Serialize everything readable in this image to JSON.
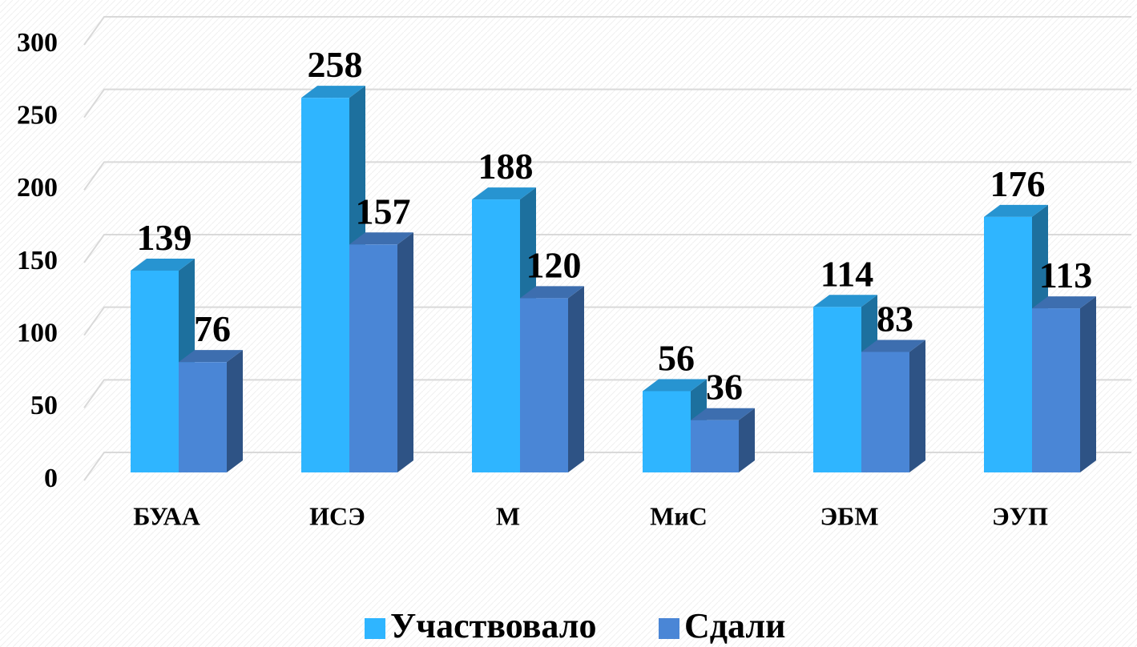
{
  "chart_data": {
    "type": "bar3d",
    "categories": [
      "БУАА",
      "ИСЭ",
      "М",
      "МиС",
      "ЭБМ",
      "ЭУП"
    ],
    "series": [
      {
        "name": "Участвовало",
        "color": "#2fb5ff",
        "values": [
          139,
          258,
          188,
          56,
          114,
          176
        ]
      },
      {
        "name": "Сдали",
        "color": "#4a86d6",
        "values": [
          76,
          157,
          120,
          36,
          83,
          113
        ]
      }
    ],
    "ylim": [
      0,
      300
    ],
    "yticks": [
      0,
      50,
      100,
      150,
      200,
      250,
      300
    ],
    "grid": true,
    "legend": "bottom"
  }
}
